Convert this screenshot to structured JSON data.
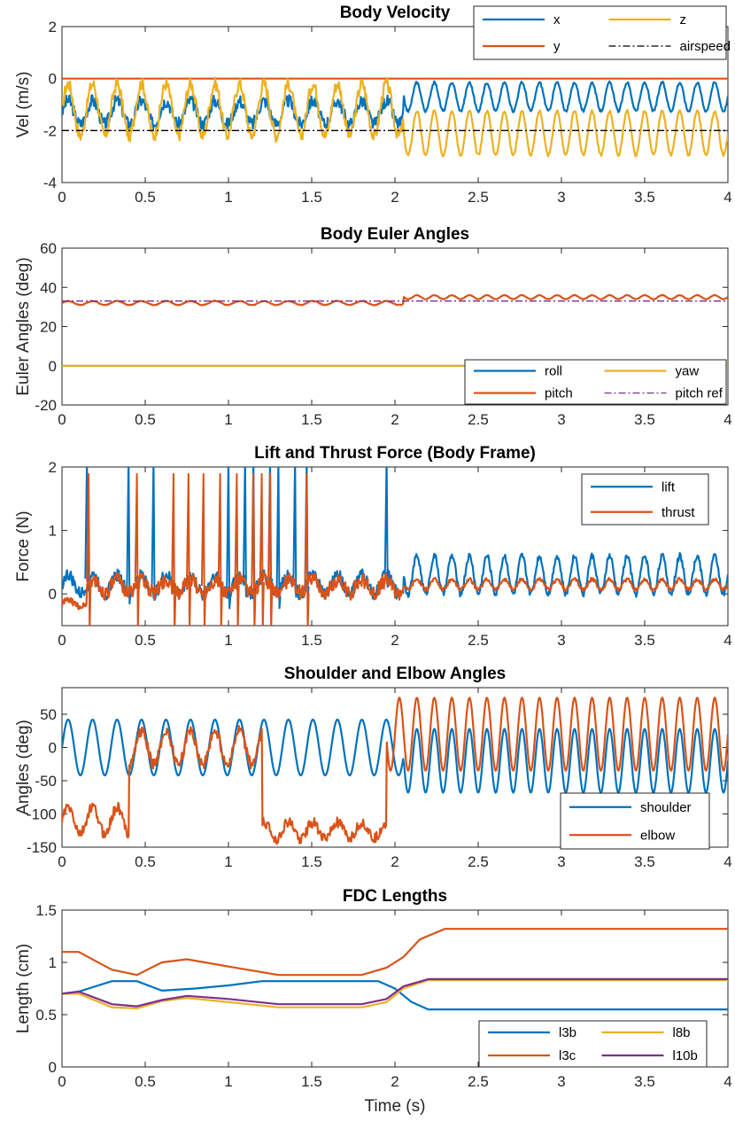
{
  "chart_data": [
    {
      "id": "velocity",
      "type": "line",
      "title": "Body Velocity",
      "xlabel": "",
      "ylabel": "Vel (m/s)",
      "xlim": [
        0,
        4
      ],
      "ylim": [
        -4,
        2
      ],
      "yticks": [
        2,
        0,
        -2,
        -4
      ],
      "legend": {
        "position": "top-right",
        "columns": 2
      },
      "series": [
        {
          "name": "x",
          "color": "#0072BD",
          "style": "solid",
          "segments": [
            {
              "t0": 0,
              "t1": 2.05,
              "mean": -1.3,
              "amp": 0.45,
              "freq": 6.8,
              "noise": 0.25
            },
            {
              "t0": 2.05,
              "t1": 4,
              "mean": -0.7,
              "amp": 0.55,
              "freq": 9.5,
              "noise": 0.05
            }
          ]
        },
        {
          "name": "y",
          "color": "#D95319",
          "style": "solid",
          "segments": [
            {
              "t0": 0,
              "t1": 4,
              "mean": 0.0,
              "amp": 0.0,
              "freq": 1,
              "noise": 0.0
            }
          ]
        },
        {
          "name": "z",
          "color": "#EDB120",
          "style": "solid",
          "segments": [
            {
              "t0": 0,
              "t1": 2.05,
              "mean": -1.2,
              "amp": 1.0,
              "freq": 6.8,
              "noise": 0.25
            },
            {
              "t0": 2.05,
              "t1": 4,
              "mean": -2.1,
              "amp": 0.85,
              "freq": 9.5,
              "noise": 0.05
            }
          ]
        },
        {
          "name": "airspeed x",
          "color": "#000000",
          "style": "dashdot",
          "segments": [
            {
              "t0": 0,
              "t1": 4,
              "mean": -2.0,
              "amp": 0.0,
              "freq": 1,
              "noise": 0.0
            }
          ]
        }
      ]
    },
    {
      "id": "euler",
      "type": "line",
      "title": "Body Euler Angles",
      "xlabel": "",
      "ylabel": "Euler Angles (deg)",
      "xlim": [
        0,
        4
      ],
      "ylim": [
        -20,
        60
      ],
      "yticks": [
        60,
        40,
        20,
        0,
        -20
      ],
      "legend": {
        "position": "bottom-right",
        "columns": 2
      },
      "series": [
        {
          "name": "roll",
          "color": "#0072BD",
          "style": "solid",
          "segments": [
            {
              "t0": 0,
              "t1": 4,
              "mean": 0.0,
              "amp": 0.0,
              "freq": 1,
              "noise": 0.0
            }
          ]
        },
        {
          "name": "pitch",
          "color": "#D95319",
          "style": "solid",
          "segments": [
            {
              "t0": 0,
              "t1": 2.05,
              "mean": 32.0,
              "amp": 1.0,
              "freq": 6.8,
              "noise": 0.2
            },
            {
              "t0": 2.05,
              "t1": 4,
              "mean": 35.0,
              "amp": 1.0,
              "freq": 9.5,
              "noise": 0.1
            }
          ]
        },
        {
          "name": "yaw",
          "color": "#EDB120",
          "style": "solid",
          "segments": [
            {
              "t0": 0,
              "t1": 4,
              "mean": 0.0,
              "amp": 0.0,
              "freq": 1,
              "noise": 0.0
            }
          ]
        },
        {
          "name": "pitch ref",
          "color": "#7E2F8E",
          "style": "dashdot",
          "segments": [
            {
              "t0": 0,
              "t1": 4,
              "mean": 33.0,
              "amp": 0.0,
              "freq": 1,
              "noise": 0.0
            }
          ]
        }
      ]
    },
    {
      "id": "force",
      "type": "line",
      "title": "Lift and Thrust Force (Body Frame)",
      "xlabel": "",
      "ylabel": "Force (N)",
      "xlim": [
        0,
        4
      ],
      "ylim": [
        -0.5,
        2
      ],
      "yticks": [
        2,
        1,
        0
      ],
      "legend": {
        "position": "top-right",
        "columns": 1
      },
      "series": [
        {
          "name": "lift",
          "color": "#0072BD",
          "style": "solid",
          "spikes": [
            0.15,
            0.4,
            0.55,
            1.0,
            1.1,
            1.15,
            1.25,
            1.3,
            1.4,
            1.47,
            1.95
          ],
          "segments": [
            {
              "t0": 0,
              "t1": 2.05,
              "mean": 0.15,
              "amp": 0.15,
              "freq": 6.8,
              "noise": 0.1
            },
            {
              "t0": 2.05,
              "t1": 4,
              "mean": 0.3,
              "amp": 0.3,
              "freq": 9.5,
              "noise": 0.05
            }
          ]
        },
        {
          "name": "thrust",
          "color": "#D95319",
          "style": "solid",
          "spikes": [
            0.16,
            0.45,
            0.67,
            0.76,
            0.85,
            0.95,
            1.05,
            1.15,
            1.2,
            1.25,
            1.47
          ],
          "segments": [
            {
              "t0": 0,
              "t1": 0.15,
              "mean": -0.15,
              "amp": 0.05,
              "freq": 6.8,
              "noise": 0.05
            },
            {
              "t0": 0.15,
              "t1": 2.05,
              "mean": 0.12,
              "amp": 0.1,
              "freq": 6.8,
              "noise": 0.12
            },
            {
              "t0": 2.05,
              "t1": 4,
              "mean": 0.15,
              "amp": 0.08,
              "freq": 9.5,
              "noise": 0.03
            }
          ]
        }
      ]
    },
    {
      "id": "joints",
      "type": "line",
      "title": "Shoulder and Elbow Angles",
      "xlabel": "",
      "ylabel": "Angles (deg)",
      "xlim": [
        0,
        4
      ],
      "ylim": [
        -150,
        90
      ],
      "yticks": [
        50,
        0,
        -50,
        -100,
        -150
      ],
      "legend": {
        "position": "bottom-right",
        "columns": 1
      },
      "series": [
        {
          "name": "shoulder",
          "color": "#0072BD",
          "style": "solid",
          "segments": [
            {
              "t0": 0,
              "t1": 2.05,
              "mean": 0.0,
              "amp": 42.0,
              "freq": 6.8,
              "noise": 0.0
            },
            {
              "t0": 2.05,
              "t1": 4,
              "mean": -20.0,
              "amp": 48.0,
              "freq": 9.5,
              "noise": 0.0
            }
          ]
        },
        {
          "name": "elbow",
          "color": "#D95319",
          "style": "solid",
          "segments": [
            {
              "t0": 0,
              "t1": 0.4,
              "mean": -110.0,
              "amp": 20.0,
              "freq": 6.8,
              "noise": 8.0
            },
            {
              "t0": 0.4,
              "t1": 1.2,
              "mean": 0.0,
              "amp": 25.0,
              "freq": 6.8,
              "noise": 8.0
            },
            {
              "t0": 1.2,
              "t1": 1.95,
              "mean": -125.0,
              "amp": 12.0,
              "freq": 6.8,
              "noise": 8.0
            },
            {
              "t0": 1.95,
              "t1": 4,
              "mean": 20.0,
              "amp": 55.0,
              "freq": 9.5,
              "noise": 0.0
            }
          ]
        }
      ]
    },
    {
      "id": "fdc",
      "type": "line",
      "title": "FDC Lengths",
      "xlabel": "Time (s)",
      "ylabel": "Length (cm)",
      "xlim": [
        0,
        4
      ],
      "ylim": [
        0,
        1.5
      ],
      "yticks": [
        1.5,
        1,
        0.5,
        0
      ],
      "legend": {
        "position": "bottom-right",
        "columns": 2
      },
      "series": [
        {
          "name": "l3b",
          "color": "#0072BD",
          "style": "solid",
          "points": [
            [
              0,
              0.7
            ],
            [
              0.1,
              0.72
            ],
            [
              0.3,
              0.82
            ],
            [
              0.45,
              0.82
            ],
            [
              0.6,
              0.73
            ],
            [
              0.8,
              0.75
            ],
            [
              1.0,
              0.78
            ],
            [
              1.2,
              0.82
            ],
            [
              1.6,
              0.82
            ],
            [
              1.9,
              0.82
            ],
            [
              2.0,
              0.75
            ],
            [
              2.1,
              0.62
            ],
            [
              2.2,
              0.55
            ],
            [
              2.5,
              0.55
            ],
            [
              4.0,
              0.55
            ]
          ]
        },
        {
          "name": "l3c",
          "color": "#D95319",
          "style": "solid",
          "points": [
            [
              0,
              1.1
            ],
            [
              0.1,
              1.1
            ],
            [
              0.3,
              0.93
            ],
            [
              0.45,
              0.88
            ],
            [
              0.6,
              1.0
            ],
            [
              0.75,
              1.03
            ],
            [
              1.0,
              0.96
            ],
            [
              1.3,
              0.88
            ],
            [
              1.8,
              0.88
            ],
            [
              1.95,
              0.95
            ],
            [
              2.05,
              1.05
            ],
            [
              2.15,
              1.22
            ],
            [
              2.3,
              1.32
            ],
            [
              2.6,
              1.32
            ],
            [
              4.0,
              1.32
            ]
          ]
        },
        {
          "name": "l8b",
          "color": "#EDB120",
          "style": "solid",
          "points": [
            [
              0,
              0.7
            ],
            [
              0.1,
              0.7
            ],
            [
              0.3,
              0.57
            ],
            [
              0.45,
              0.56
            ],
            [
              0.6,
              0.63
            ],
            [
              0.75,
              0.66
            ],
            [
              1.0,
              0.62
            ],
            [
              1.3,
              0.57
            ],
            [
              1.8,
              0.57
            ],
            [
              1.95,
              0.62
            ],
            [
              2.05,
              0.75
            ],
            [
              2.2,
              0.83
            ],
            [
              4.0,
              0.83
            ]
          ]
        },
        {
          "name": "l10b",
          "color": "#7E2F8E",
          "style": "solid",
          "points": [
            [
              0,
              0.7
            ],
            [
              0.1,
              0.72
            ],
            [
              0.3,
              0.6
            ],
            [
              0.45,
              0.58
            ],
            [
              0.6,
              0.64
            ],
            [
              0.75,
              0.68
            ],
            [
              1.0,
              0.65
            ],
            [
              1.3,
              0.6
            ],
            [
              1.8,
              0.6
            ],
            [
              1.95,
              0.65
            ],
            [
              2.05,
              0.77
            ],
            [
              2.2,
              0.84
            ],
            [
              4.0,
              0.84
            ]
          ]
        }
      ]
    }
  ],
  "xticks": [
    0,
    0.5,
    1,
    1.5,
    2,
    2.5,
    3,
    3.5,
    4
  ]
}
